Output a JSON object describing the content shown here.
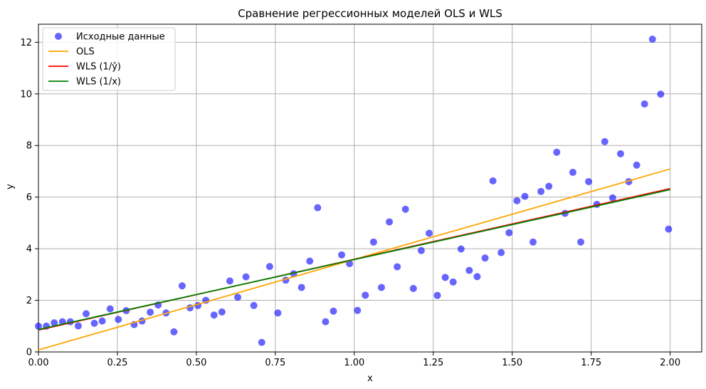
{
  "chart_data": {
    "type": "scatter",
    "title": "Сравнение регрессионных моделей OLS и WLS",
    "xlabel": "x",
    "ylabel": "y",
    "xlim": [
      0.0,
      2.1
    ],
    "ylim": [
      0,
      12.7
    ],
    "xticks": [
      "0.00",
      "0.25",
      "0.50",
      "0.75",
      "1.00",
      "1.25",
      "1.50",
      "1.75",
      "2.00"
    ],
    "yticks": [
      "0",
      "2",
      "4",
      "6",
      "8",
      "10",
      "12"
    ],
    "grid": true,
    "legend_position": "top-left",
    "scatter": {
      "name": "Исходные данные",
      "color": "#0000ff",
      "x": [
        0.0,
        0.025,
        0.05,
        0.076,
        0.101,
        0.126,
        0.151,
        0.177,
        0.202,
        0.227,
        0.253,
        0.278,
        0.303,
        0.328,
        0.354,
        0.379,
        0.404,
        0.429,
        0.455,
        0.48,
        0.505,
        0.53,
        0.556,
        0.581,
        0.606,
        0.631,
        0.657,
        0.682,
        0.707,
        0.732,
        0.758,
        0.783,
        0.808,
        0.833,
        0.859,
        0.884,
        0.909,
        0.934,
        0.96,
        0.985,
        1.01,
        1.035,
        1.061,
        1.086,
        1.111,
        1.136,
        1.162,
        1.187,
        1.212,
        1.237,
        1.263,
        1.288,
        1.313,
        1.338,
        1.364,
        1.389,
        1.414,
        1.439,
        1.465,
        1.49,
        1.515,
        1.54,
        1.566,
        1.591,
        1.616,
        1.641,
        1.667,
        1.692,
        1.717,
        1.742,
        1.768,
        1.793,
        1.818,
        1.843,
        1.869,
        1.894,
        1.919,
        1.944,
        1.97,
        1.995
      ],
      "y": [
        1.0,
        1.0,
        1.13,
        1.17,
        1.17,
        1.01,
        1.48,
        1.11,
        1.2,
        1.67,
        1.26,
        1.6,
        1.06,
        1.2,
        1.54,
        1.82,
        1.51,
        0.78,
        2.56,
        1.71,
        1.8,
        2.0,
        1.43,
        1.55,
        2.75,
        2.12,
        2.91,
        1.8,
        0.37,
        3.31,
        1.51,
        2.78,
        3.03,
        2.5,
        3.52,
        5.59,
        1.17,
        1.58,
        3.76,
        3.42,
        1.61,
        2.2,
        4.26,
        2.5,
        5.04,
        3.3,
        5.53,
        2.46,
        3.93,
        4.6,
        2.19,
        2.89,
        2.71,
        3.99,
        3.16,
        2.92,
        3.64,
        6.63,
        3.85,
        4.62,
        5.86,
        6.03,
        4.26,
        6.22,
        6.42,
        7.74,
        5.37,
        6.96,
        4.26,
        6.6,
        5.72,
        8.15,
        5.97,
        7.68,
        6.6,
        7.24,
        9.61,
        12.12,
        9.99,
        4.76
      ]
    },
    "series": [
      {
        "name": "OLS",
        "color": "#ffa500",
        "x": [
          0.0,
          2.0
        ],
        "y": [
          0.08,
          7.09
        ]
      },
      {
        "name": "WLS (1/ŷ)",
        "color": "#ff0000",
        "x": [
          0.0,
          2.0
        ],
        "y": [
          0.85,
          6.33
        ]
      },
      {
        "name": "WLS (1/x)",
        "color": "#008000",
        "x": [
          0.0,
          2.0
        ],
        "y": [
          0.87,
          6.29
        ]
      }
    ]
  }
}
